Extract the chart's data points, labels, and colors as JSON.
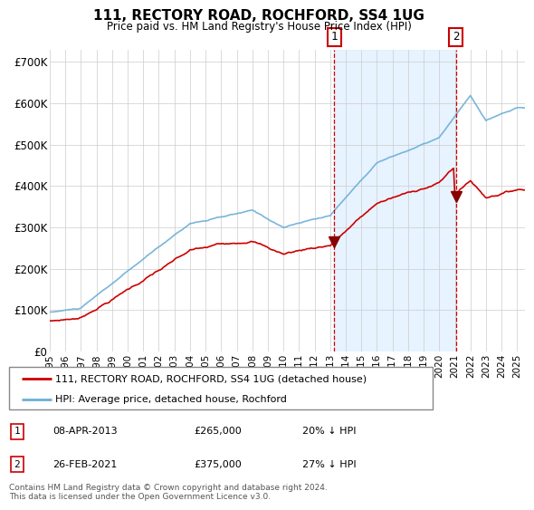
{
  "title": "111, RECTORY ROAD, ROCHFORD, SS4 1UG",
  "subtitle": "Price paid vs. HM Land Registry's House Price Index (HPI)",
  "ylabel_ticks": [
    "£0",
    "£100K",
    "£200K",
    "£300K",
    "£400K",
    "£500K",
    "£600K",
    "£700K"
  ],
  "ytick_values": [
    0,
    100000,
    200000,
    300000,
    400000,
    500000,
    600000,
    700000
  ],
  "ylim": [
    0,
    730000
  ],
  "hpi_color": "#6baed6",
  "hpi_fill_color": "#d0e4f5",
  "price_color": "#cc0000",
  "sale1_yr": 2013.25,
  "sale1_price": 265000,
  "sale2_yr": 2021.083,
  "sale2_price": 375000,
  "legend_line1": "111, RECTORY ROAD, ROCHFORD, SS4 1UG (detached house)",
  "legend_line2": "HPI: Average price, detached house, Rochford",
  "footer": "Contains HM Land Registry data © Crown copyright and database right 2024.\nThis data is licensed under the Open Government Licence v3.0.",
  "table_rows": [
    [
      "1",
      "08-APR-2013",
      "£265,000",
      "20% ↓ HPI"
    ],
    [
      "2",
      "26-FEB-2021",
      "£375,000",
      "27% ↓ HPI"
    ]
  ],
  "background_color": "#ffffff",
  "xlim_start": 1995,
  "xlim_end": 2025.5
}
